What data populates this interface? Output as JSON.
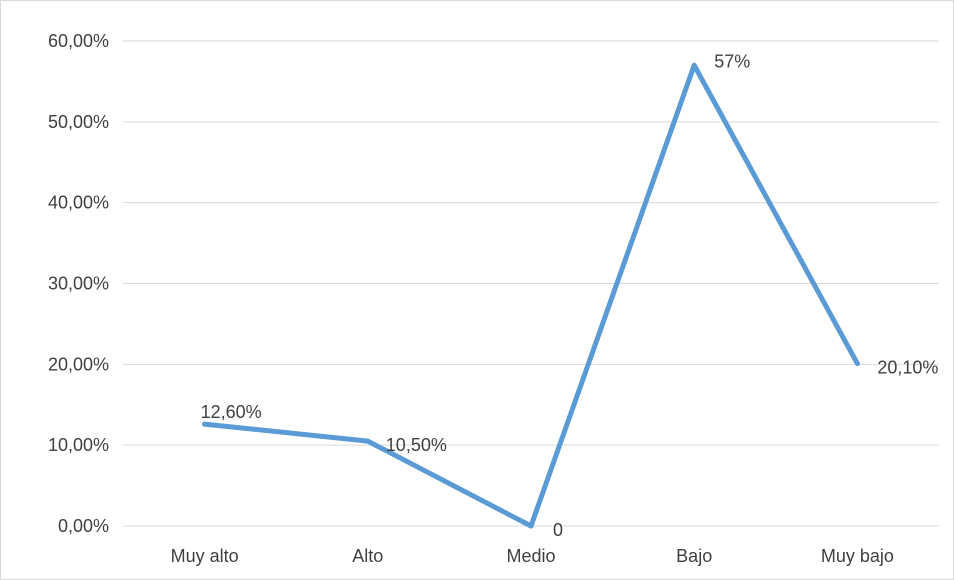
{
  "chart_data": {
    "type": "line",
    "categories": [
      "Muy alto",
      "Alto",
      "Medio",
      "Bajo",
      "Muy bajo"
    ],
    "series": [
      {
        "values": [
          12.6,
          10.5,
          0,
          57,
          20.1
        ]
      }
    ],
    "data_labels": [
      "12,60%",
      "10,50%",
      "0",
      "57%",
      "20,10%"
    ],
    "y_ticks": [
      {
        "value": 0,
        "label": "0,00%"
      },
      {
        "value": 10,
        "label": "10,00%"
      },
      {
        "value": 20,
        "label": "20,00%"
      },
      {
        "value": 30,
        "label": "30,00%"
      },
      {
        "value": 40,
        "label": "40,00%"
      },
      {
        "value": 50,
        "label": "50,00%"
      },
      {
        "value": 60,
        "label": "60,00%"
      }
    ],
    "ylim": [
      0,
      60
    ],
    "grid": true,
    "legend": "none",
    "line_color": "#5b9bd5",
    "grid_color": "#d9d9d9"
  }
}
